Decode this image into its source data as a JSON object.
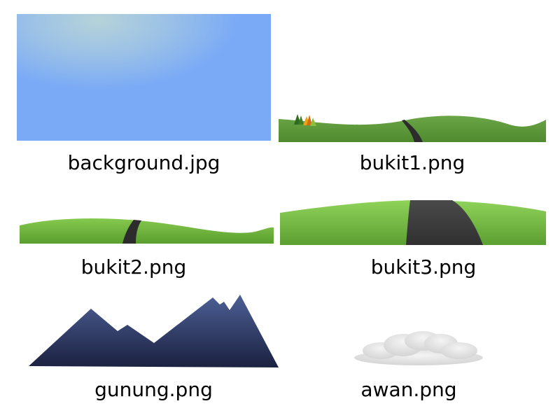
{
  "assets": {
    "background": {
      "filename": "background.jpg",
      "sky_color": "#7aaaf6",
      "glow_color": "#b6d3d9"
    },
    "bukit1": {
      "filename": "bukit1.png",
      "grass_color": "#5f9a3c",
      "road_color": "#2c2c2c",
      "tree_colors": [
        "#2f6b1e",
        "#e8a317",
        "#d96b0e",
        "#8cbf3f"
      ]
    },
    "bukit2": {
      "filename": "bukit2.png",
      "grass_color": "#6cb43a",
      "road_color": "#2c2c2c"
    },
    "bukit3": {
      "filename": "bukit3.png",
      "grass_color": "#74c043",
      "road_color": "#3a3a3a"
    },
    "gunung": {
      "filename": "gunung.png",
      "top_color": "#4c5f95",
      "bottom_color": "#1b2140"
    },
    "awan": {
      "filename": "awan.png",
      "cloud_color": "#e6e6e6"
    }
  }
}
